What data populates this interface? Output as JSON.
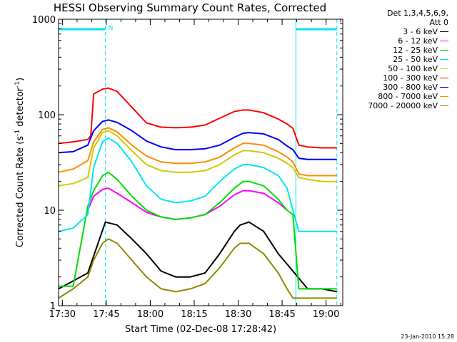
{
  "chart_data": {
    "type": "line",
    "title": "HESSI Observing Summary Count Rates, Corrected",
    "xlabel": "Start Time (02-Dec-08 17:28:42)",
    "ylabel_main": "Corrected Count Rate (s",
    "ylabel_sup1": "-1",
    "ylabel_mid": " detector",
    "ylabel_sup2": "-1",
    "ylabel_end": ")",
    "yscale": "log",
    "ylim": [
      1,
      1000
    ],
    "xlim_minutes": [
      0,
      97
    ],
    "x_ticks": [
      {
        "label": "17:30",
        "m": 1.3
      },
      {
        "label": "17:45",
        "m": 16.3
      },
      {
        "label": "18:00",
        "m": 31.3
      },
      {
        "label": "18:15",
        "m": 46.3
      },
      {
        "label": "18:30",
        "m": 61.3
      },
      {
        "label": "18:45",
        "m": 76.3
      },
      {
        "label": "19:00",
        "m": 91.3
      }
    ],
    "y_ticks": [
      {
        "label": "1",
        "v": 1
      },
      {
        "label": "10",
        "v": 10
      },
      {
        "label": "100",
        "v": 100
      },
      {
        "label": "1000",
        "v": 1000
      }
    ],
    "legend_header": [
      "Det 1,3,4,5,6,9,",
      "Att 0"
    ],
    "annotations": {
      "night_marker_label": "N",
      "night_bars": [
        [
          0,
          16
        ],
        [
          81,
          95
        ]
      ],
      "dashed_lines_minutes": [
        16,
        95
      ],
      "solid_line_minutes": 81
    },
    "timestamp": "23-Jan-2010 15:28",
    "series": [
      {
        "name": "3 - 6 keV",
        "color": "#000000",
        "x": [
          0,
          10,
          14,
          16,
          20,
          25,
          30,
          35,
          40,
          45,
          50,
          55,
          60,
          62,
          65,
          70,
          75,
          80,
          85,
          90,
          95
        ],
        "y": [
          1.5,
          2.2,
          5,
          7.5,
          7,
          5,
          3.5,
          2.3,
          2,
          2,
          2.2,
          3.5,
          6,
          7,
          7.5,
          6,
          3.5,
          2.3,
          1.5,
          1.5,
          1.4
        ]
      },
      {
        "name": "6 - 12 keV",
        "color": "#ff00ff",
        "x": [
          10,
          12,
          15,
          17,
          20,
          25,
          30,
          35,
          40,
          45,
          50,
          55,
          60,
          63,
          65,
          70,
          75,
          78
        ],
        "y": [
          10,
          14,
          16.5,
          17,
          15,
          12,
          9.5,
          8.5,
          8,
          8.3,
          9,
          11,
          14.5,
          16,
          16,
          15,
          12,
          10
        ]
      },
      {
        "name": "12 - 25 keV",
        "color": "#00dd00",
        "x": [
          0,
          5,
          10,
          12,
          15,
          17,
          20,
          25,
          30,
          35,
          40,
          45,
          50,
          55,
          60,
          63,
          65,
          70,
          75,
          78,
          80,
          82,
          85,
          90,
          95
        ],
        "y": [
          1.6,
          1.6,
          11,
          16,
          23,
          25,
          21,
          14,
          10,
          8.5,
          8,
          8.3,
          9,
          12,
          17,
          20,
          20,
          18,
          13,
          10,
          9,
          1.5,
          1.5,
          1.5,
          1.5
        ]
      },
      {
        "name": "25 - 50 keV",
        "color": "#00e5ee",
        "x": [
          0,
          5,
          10,
          12,
          15,
          17,
          20,
          25,
          30,
          35,
          40,
          45,
          50,
          55,
          60,
          63,
          65,
          70,
          75,
          78,
          80,
          82,
          85,
          90,
          95
        ],
        "y": [
          6,
          6.5,
          9,
          28,
          52,
          57,
          50,
          32,
          18,
          13,
          12,
          12.5,
          14,
          20,
          27,
          30,
          30,
          28,
          23,
          17,
          10,
          6,
          6,
          6,
          6
        ]
      },
      {
        "name": "50 - 100 keV",
        "color": "#cccc00",
        "x": [
          0,
          5,
          10,
          12,
          15,
          17,
          20,
          25,
          30,
          35,
          40,
          45,
          50,
          55,
          60,
          63,
          65,
          70,
          75,
          78,
          80,
          82,
          85,
          90,
          95
        ],
        "y": [
          18,
          19,
          22,
          45,
          65,
          68,
          60,
          42,
          30,
          26,
          25,
          25,
          26,
          30,
          38,
          42,
          42,
          40,
          35,
          31,
          28,
          22,
          21,
          20,
          20
        ]
      },
      {
        "name": "100 - 300 keV",
        "color": "#ff0000",
        "x": [
          0,
          5,
          10,
          11,
          12,
          15,
          17,
          20,
          25,
          30,
          35,
          40,
          45,
          50,
          55,
          60,
          63,
          65,
          70,
          75,
          78,
          80,
          82,
          85,
          90,
          95
        ],
        "y": [
          50,
          52,
          55,
          60,
          165,
          185,
          190,
          175,
          120,
          82,
          74,
          73,
          74,
          78,
          92,
          108,
          112,
          112,
          105,
          90,
          80,
          72,
          48,
          46,
          45,
          45
        ]
      },
      {
        "name": "300 - 800 keV",
        "color": "#0000ff",
        "x": [
          0,
          5,
          10,
          12,
          15,
          17,
          20,
          25,
          30,
          35,
          40,
          45,
          50,
          55,
          60,
          63,
          65,
          70,
          75,
          78,
          80,
          82,
          85,
          90,
          95
        ],
        "y": [
          40,
          41,
          48,
          68,
          85,
          88,
          83,
          68,
          53,
          46,
          43,
          43,
          44,
          48,
          58,
          64,
          65,
          63,
          55,
          47,
          43,
          35,
          34,
          34,
          34
        ]
      },
      {
        "name": "800 - 7000 keV",
        "color": "#ff8c00",
        "x": [
          0,
          5,
          10,
          12,
          15,
          17,
          20,
          25,
          30,
          35,
          40,
          45,
          50,
          55,
          60,
          63,
          65,
          70,
          75,
          78,
          80,
          82,
          85,
          90,
          95
        ],
        "y": [
          25,
          27,
          33,
          52,
          70,
          73,
          66,
          48,
          37,
          32,
          31,
          31,
          32,
          36,
          45,
          50,
          50,
          48,
          41,
          36,
          32,
          24,
          23,
          23,
          23
        ]
      },
      {
        "name": "7000 - 20000 keV",
        "color": "#8b8b00",
        "x": [
          0,
          5,
          10,
          12,
          15,
          17,
          20,
          25,
          30,
          35,
          40,
          45,
          50,
          55,
          60,
          62,
          65,
          70,
          75,
          78,
          80,
          85,
          90,
          95
        ],
        "y": [
          1.2,
          1.5,
          2,
          3,
          4.5,
          5,
          4.5,
          3,
          2,
          1.5,
          1.4,
          1.5,
          1.7,
          2.5,
          4,
          4.5,
          4.5,
          3.5,
          2.2,
          1.5,
          1.2,
          1.2,
          1.2,
          1.2
        ]
      }
    ]
  }
}
